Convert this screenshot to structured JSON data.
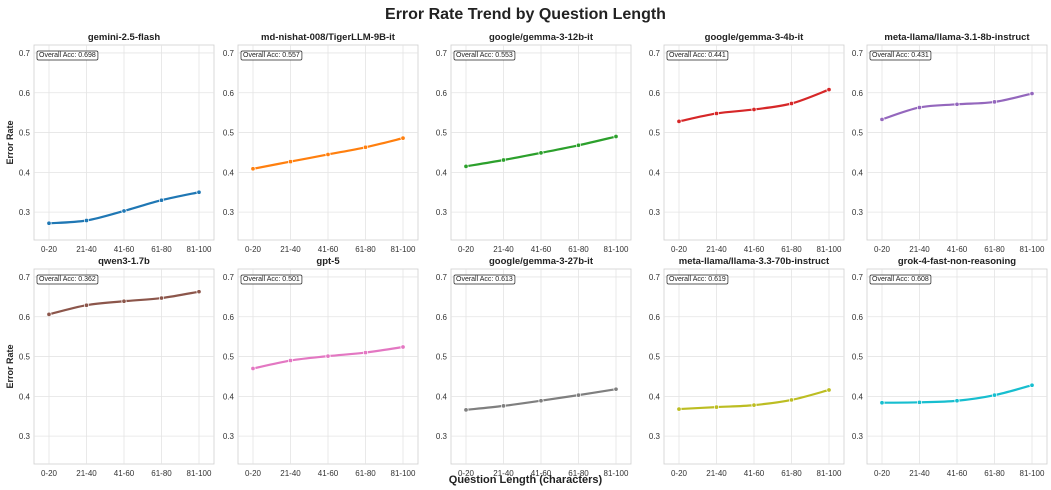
{
  "figure": {
    "title": "Error Rate Trend by Question Length",
    "xlabel": "Question Length (characters)",
    "ylabel": "Error Rate"
  },
  "chart_data": [
    {
      "type": "line",
      "title": "gemini-2.5-flash",
      "annotation": "Overall Acc: 0.698",
      "color": "#1f77b4",
      "categories": [
        "0-20",
        "21-40",
        "41-60",
        "61-80",
        "81-100"
      ],
      "values": [
        0.272,
        0.279,
        0.303,
        0.33,
        0.35
      ],
      "ylim": [
        0.23,
        0.72
      ],
      "yticks": [
        0.3,
        0.4,
        0.5,
        0.6,
        0.7
      ]
    },
    {
      "type": "line",
      "title": "md-nishat-008/TigerLLM-9B-it",
      "annotation": "Overall Acc: 0.557",
      "color": "#ff7f0e",
      "categories": [
        "0-20",
        "21-40",
        "41-60",
        "61-80",
        "81-100"
      ],
      "values": [
        0.409,
        0.427,
        0.445,
        0.463,
        0.486
      ],
      "ylim": [
        0.23,
        0.72
      ],
      "yticks": [
        0.3,
        0.4,
        0.5,
        0.6,
        0.7
      ]
    },
    {
      "type": "line",
      "title": "google/gemma-3-12b-it",
      "annotation": "Overall Acc: 0.553",
      "color": "#2ca02c",
      "categories": [
        "0-20",
        "21-40",
        "41-60",
        "61-80",
        "81-100"
      ],
      "values": [
        0.415,
        0.431,
        0.449,
        0.468,
        0.49
      ],
      "ylim": [
        0.23,
        0.72
      ],
      "yticks": [
        0.3,
        0.4,
        0.5,
        0.6,
        0.7
      ]
    },
    {
      "type": "line",
      "title": "google/gemma-3-4b-it",
      "annotation": "Overall Acc: 0.441",
      "color": "#d62728",
      "categories": [
        "0-20",
        "21-40",
        "41-60",
        "61-80",
        "81-100"
      ],
      "values": [
        0.528,
        0.548,
        0.558,
        0.573,
        0.608
      ],
      "ylim": [
        0.23,
        0.72
      ],
      "yticks": [
        0.3,
        0.4,
        0.5,
        0.6,
        0.7
      ]
    },
    {
      "type": "line",
      "title": "meta-llama/llama-3.1-8b-instruct",
      "annotation": "Overall Acc: 0.431",
      "color": "#9467bd",
      "categories": [
        "0-20",
        "21-40",
        "41-60",
        "61-80",
        "81-100"
      ],
      "values": [
        0.533,
        0.563,
        0.571,
        0.577,
        0.598
      ],
      "ylim": [
        0.23,
        0.72
      ],
      "yticks": [
        0.3,
        0.4,
        0.5,
        0.6,
        0.7
      ]
    },
    {
      "type": "line",
      "title": "qwen3-1.7b",
      "annotation": "Overall Acc: 0.362",
      "color": "#8c564b",
      "categories": [
        "0-20",
        "21-40",
        "41-60",
        "61-80",
        "81-100"
      ],
      "values": [
        0.606,
        0.629,
        0.639,
        0.647,
        0.663
      ],
      "ylim": [
        0.23,
        0.72
      ],
      "yticks": [
        0.3,
        0.4,
        0.5,
        0.6,
        0.7
      ]
    },
    {
      "type": "line",
      "title": "gpt-5",
      "annotation": "Overall Acc: 0.501",
      "color": "#e377c2",
      "categories": [
        "0-20",
        "21-40",
        "41-60",
        "61-80",
        "81-100"
      ],
      "values": [
        0.47,
        0.49,
        0.501,
        0.51,
        0.524
      ],
      "ylim": [
        0.23,
        0.72
      ],
      "yticks": [
        0.3,
        0.4,
        0.5,
        0.6,
        0.7
      ]
    },
    {
      "type": "line",
      "title": "google/gemma-3-27b-it",
      "annotation": "Overall Acc: 0.613",
      "color": "#7f7f7f",
      "categories": [
        "0-20",
        "21-40",
        "41-60",
        "61-80",
        "81-100"
      ],
      "values": [
        0.366,
        0.376,
        0.389,
        0.403,
        0.418
      ],
      "ylim": [
        0.23,
        0.72
      ],
      "yticks": [
        0.3,
        0.4,
        0.5,
        0.6,
        0.7
      ]
    },
    {
      "type": "line",
      "title": "meta-llama/llama-3.3-70b-instruct",
      "annotation": "Overall Acc: 0.619",
      "color": "#bcbd22",
      "categories": [
        "0-20",
        "21-40",
        "41-60",
        "61-80",
        "81-100"
      ],
      "values": [
        0.368,
        0.373,
        0.378,
        0.391,
        0.416
      ],
      "ylim": [
        0.23,
        0.72
      ],
      "yticks": [
        0.3,
        0.4,
        0.5,
        0.6,
        0.7
      ]
    },
    {
      "type": "line",
      "title": "grok-4-fast-non-reasoning",
      "annotation": "Overall Acc: 0.608",
      "color": "#17becf",
      "categories": [
        "0-20",
        "21-40",
        "41-60",
        "61-80",
        "81-100"
      ],
      "values": [
        0.384,
        0.385,
        0.389,
        0.403,
        0.428
      ],
      "ylim": [
        0.23,
        0.72
      ],
      "yticks": [
        0.3,
        0.4,
        0.5,
        0.6,
        0.7
      ]
    }
  ]
}
